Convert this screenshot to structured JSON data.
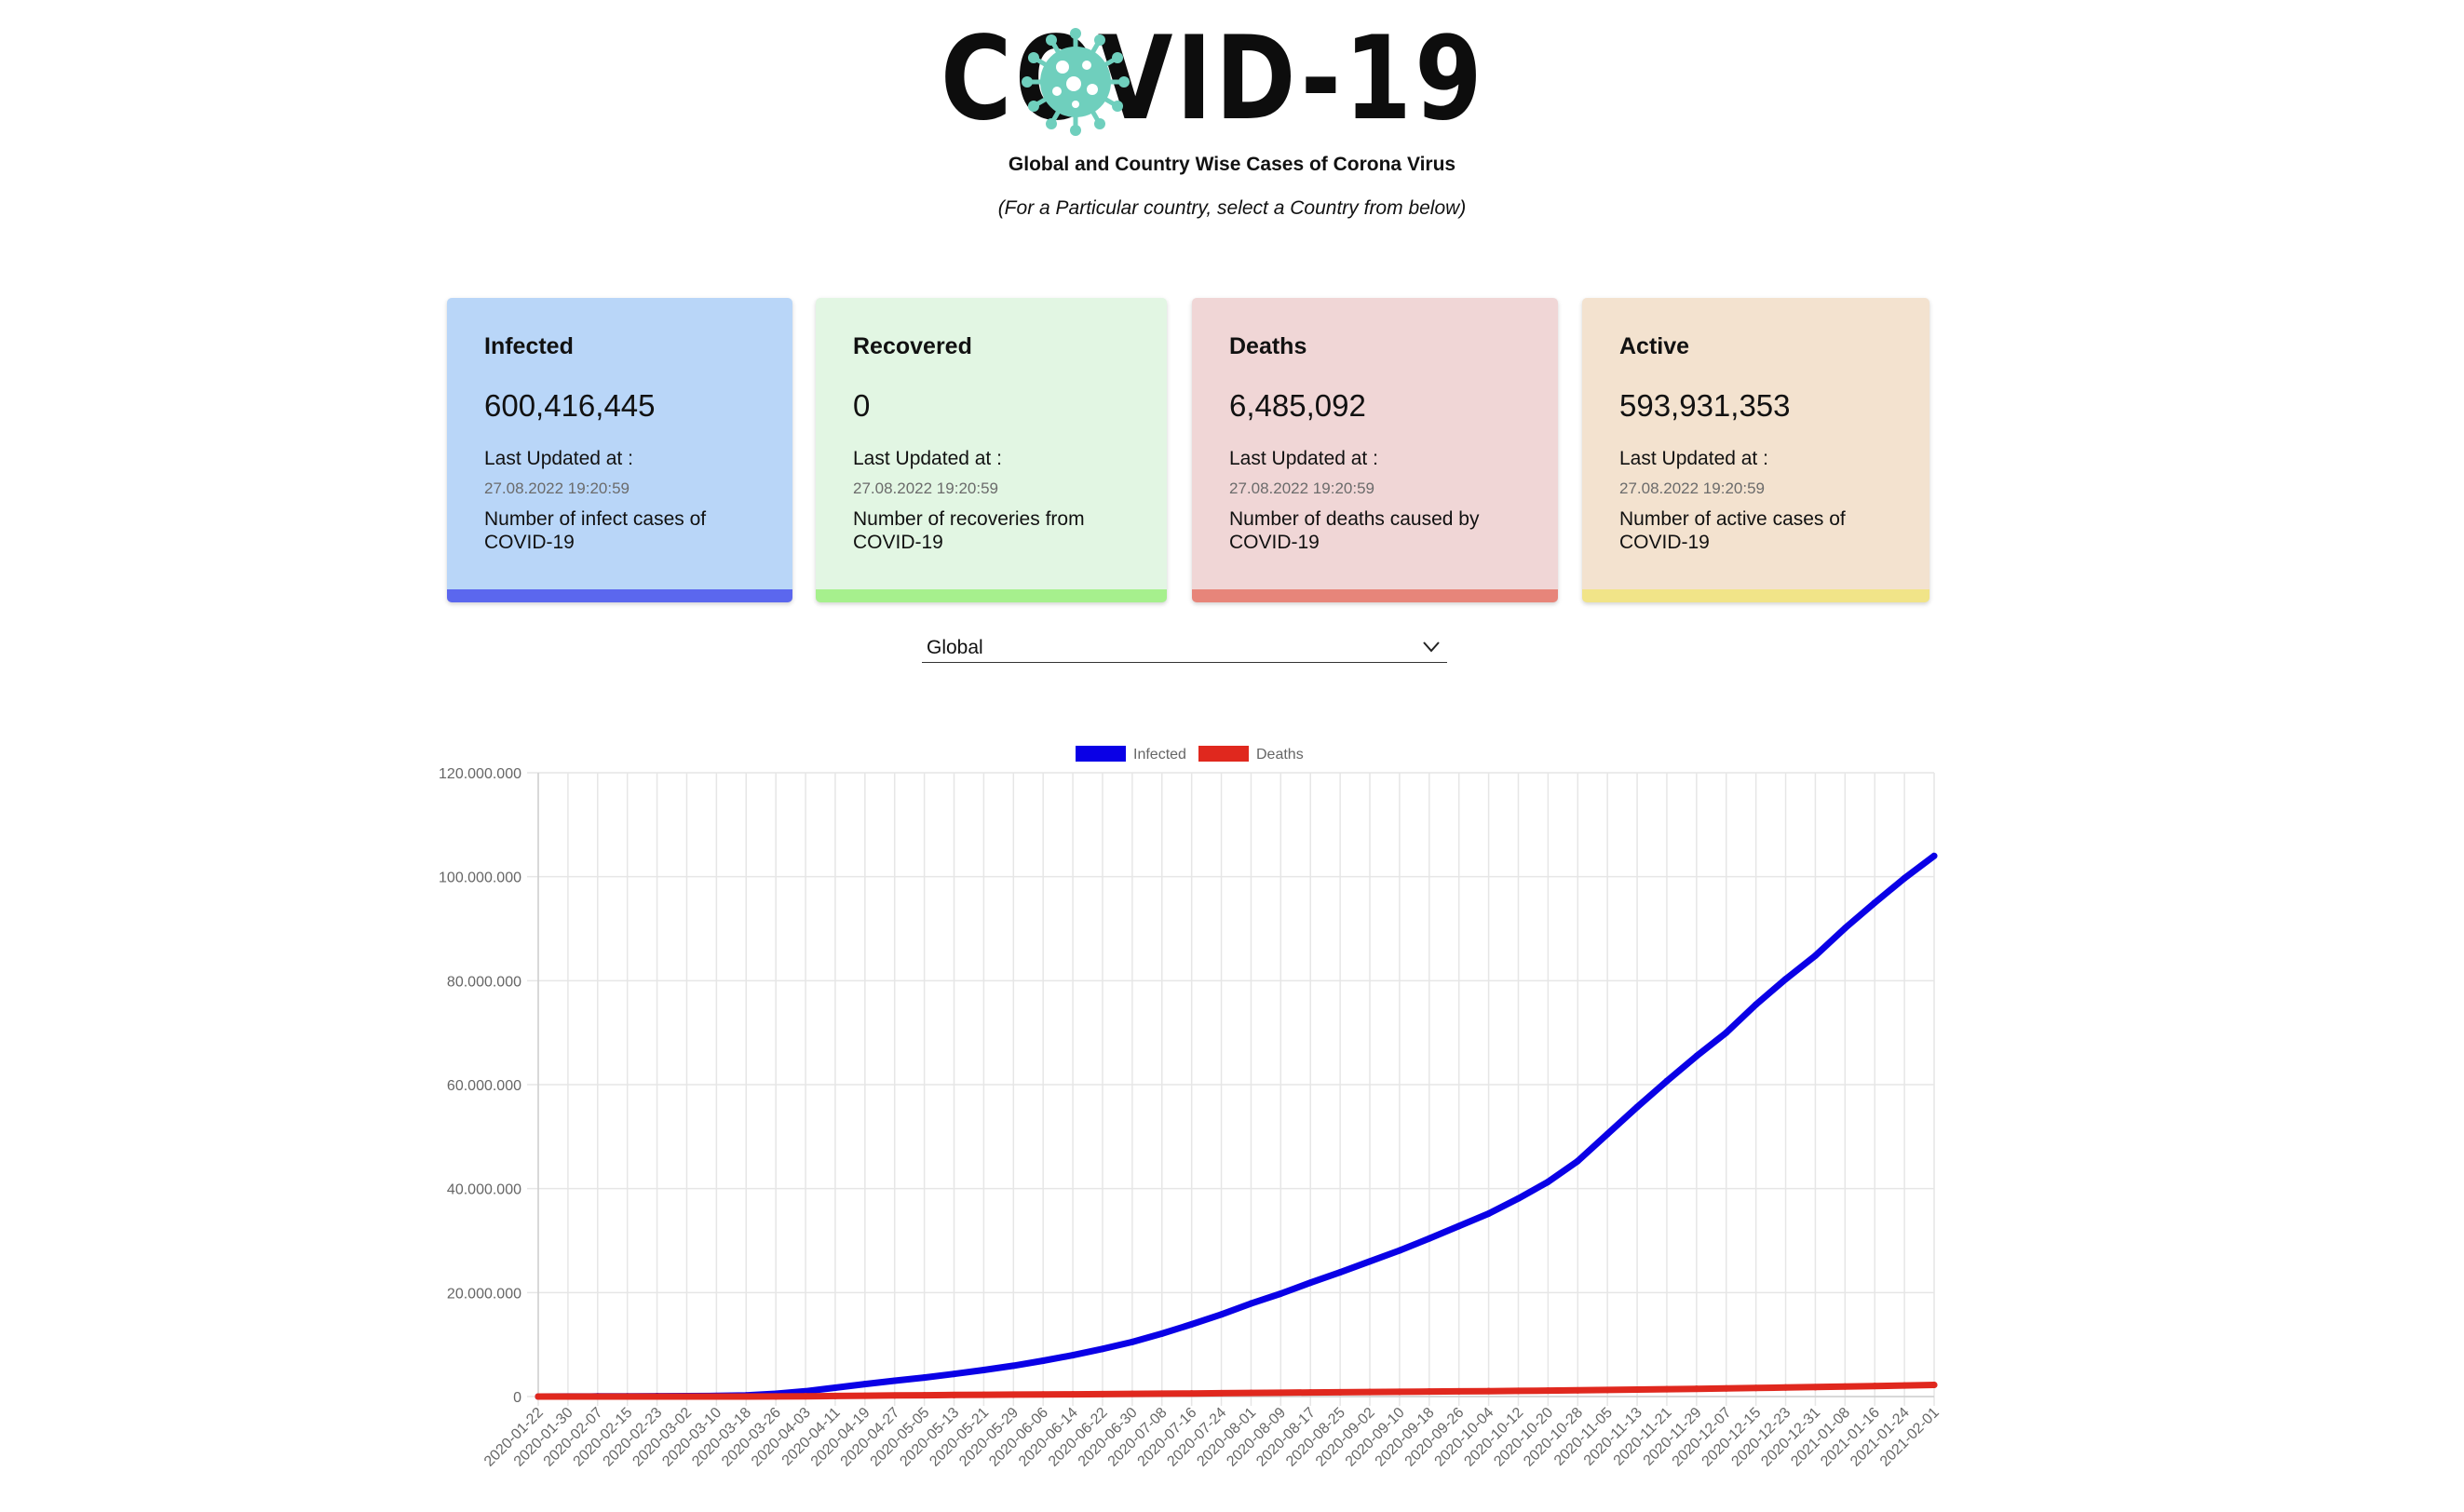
{
  "header": {
    "logo_text": "COVID-19",
    "subtitle": "Global and Country Wise Cases of Corona Virus",
    "note": "(For a Particular country, select a Country from below)"
  },
  "cards": [
    {
      "key": "infected",
      "title": "Infected",
      "value": "600,416,445",
      "updated_label": "Last Updated at :",
      "updated": "27.08.2022 19:20:59",
      "description": "Number of infect cases of COVID-19",
      "bg": "#b9d6f8",
      "accent": "#5b67ee"
    },
    {
      "key": "recovered",
      "title": "Recovered",
      "value": "0",
      "updated_label": "Last Updated at :",
      "updated": "27.08.2022 19:20:59",
      "description": "Number of recoveries from COVID-19",
      "bg": "#e2f6e3",
      "accent": "#a6f08d"
    },
    {
      "key": "deaths",
      "title": "Deaths",
      "value": "6,485,092",
      "updated_label": "Last Updated at :",
      "updated": "27.08.2022 19:20:59",
      "description": "Number of deaths caused by COVID-19",
      "bg": "#f0d6d6",
      "accent": "#e7857a"
    },
    {
      "key": "active",
      "title": "Active",
      "value": "593,931,353",
      "updated_label": "Last Updated at :",
      "updated": "27.08.2022 19:20:59",
      "description": "Number of active cases of COVID-19",
      "bg": "#f3e2cf",
      "accent": "#f1e488"
    }
  ],
  "country_select": {
    "value": "Global"
  },
  "colors": {
    "infected": "#0a00e6",
    "deaths": "#e0281e",
    "grid": "#e6e6e6",
    "logo_virus": "#6fcfbd"
  },
  "chart_data": {
    "type": "line",
    "legend": {
      "position": "top"
    },
    "ylim": [
      0,
      120000000
    ],
    "ytick_labels": [
      "0",
      "20.000.000",
      "40.000.000",
      "60.000.000",
      "80.000.000",
      "100.000.000",
      "120.000.000"
    ],
    "categories": [
      "2020-01-22",
      "2020-01-30",
      "2020-02-07",
      "2020-02-15",
      "2020-02-23",
      "2020-03-02",
      "2020-03-10",
      "2020-03-18",
      "2020-03-26",
      "2020-04-03",
      "2020-04-11",
      "2020-04-19",
      "2020-04-27",
      "2020-05-05",
      "2020-05-13",
      "2020-05-21",
      "2020-05-29",
      "2020-06-06",
      "2020-06-14",
      "2020-06-22",
      "2020-06-30",
      "2020-07-08",
      "2020-07-16",
      "2020-07-24",
      "2020-08-01",
      "2020-08-09",
      "2020-08-17",
      "2020-08-25",
      "2020-09-02",
      "2020-09-10",
      "2020-09-18",
      "2020-09-26",
      "2020-10-04",
      "2020-10-12",
      "2020-10-20",
      "2020-10-28",
      "2020-11-05",
      "2020-11-13",
      "2020-11-21",
      "2020-11-29",
      "2020-12-07",
      "2020-12-15",
      "2020-12-23",
      "2020-12-31",
      "2021-01-08",
      "2021-01-16",
      "2021-01-24",
      "2021-02-01"
    ],
    "series": [
      {
        "name": "Infected",
        "values": [
          557,
          9800,
          34600,
          51900,
          79000,
          90300,
          118600,
          219300,
          530000,
          1016000,
          1699000,
          2404000,
          3043000,
          3658000,
          4347000,
          5102000,
          5934000,
          6899000,
          7955000,
          9165000,
          10500000,
          12100000,
          13900000,
          15800000,
          17900000,
          19800000,
          21900000,
          23900000,
          26000000,
          28100000,
          30400000,
          32800000,
          35200000,
          38100000,
          41300000,
          45300000,
          50500000,
          55700000,
          60700000,
          65500000,
          70000000,
          75400000,
          80300000,
          84800000,
          90100000,
          95000000,
          99700000,
          104000000
        ]
      },
      {
        "name": "Deaths",
        "values": [
          17,
          213,
          722,
          1666,
          2622,
          3131,
          4262,
          8733,
          23970,
          58200,
          108000,
          165000,
          211000,
          254000,
          297000,
          339000,
          369000,
          400000,
          432000,
          471000,
          513000,
          555000,
          597000,
          645000,
          690000,
          737000,
          785000,
          832000,
          876000,
          918000,
          959000,
          1002000,
          1046000,
          1092000,
          1143000,
          1196000,
          1263000,
          1336000,
          1414000,
          1493000,
          1572000,
          1653000,
          1737000,
          1819000,
          1916000,
          2028000,
          2133000,
          2235000
        ]
      }
    ]
  }
}
